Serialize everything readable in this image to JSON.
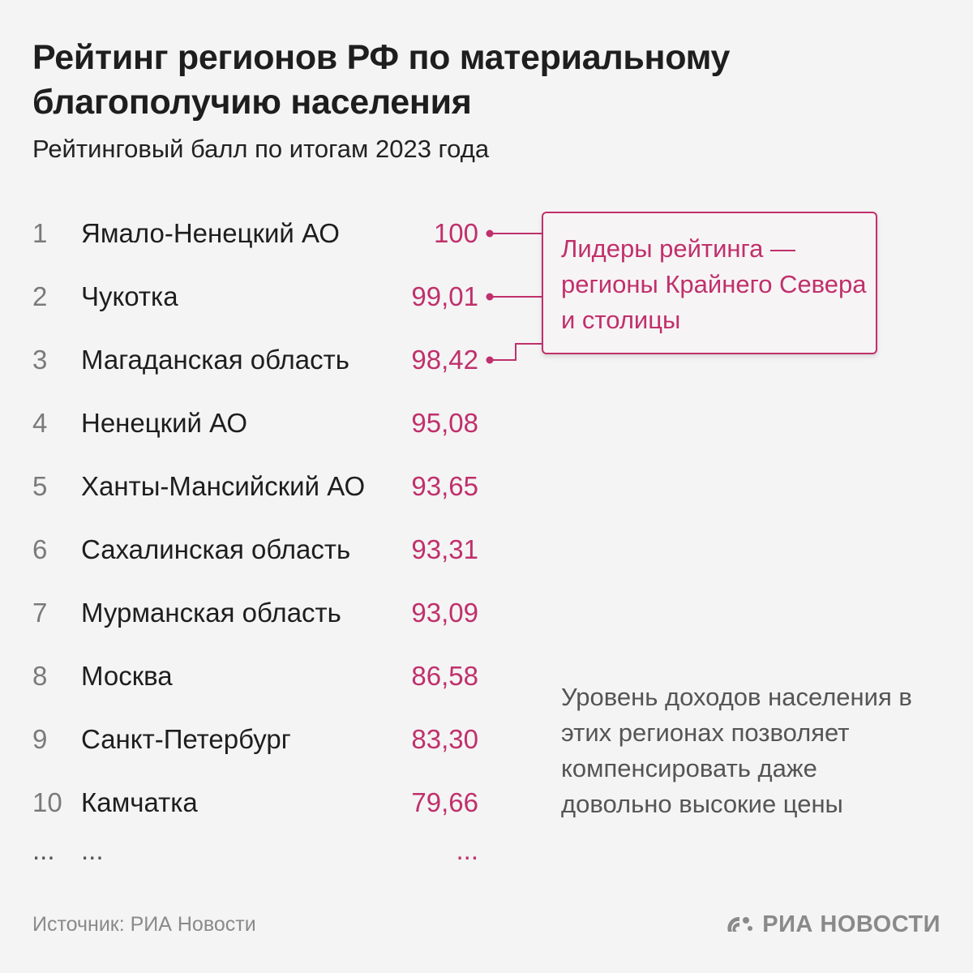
{
  "header": {
    "title": "Рейтинг регионов РФ по материальному благополучию населения",
    "subtitle": "Рейтинговый балл по итогам 2023 года"
  },
  "chart_data": {
    "type": "table",
    "title": "Рейтинг регионов РФ по материальному благополучию населения",
    "subtitle": "Рейтинговый балл по итогам 2023 года",
    "rows": [
      {
        "rank": "1",
        "region": "Ямало-Ненецкий АО",
        "value": "100"
      },
      {
        "rank": "2",
        "region": "Чукотка",
        "value": "99,01"
      },
      {
        "rank": "3",
        "region": "Магаданская область",
        "value": "98,42"
      },
      {
        "rank": "4",
        "region": "Ненецкий АО",
        "value": "95,08"
      },
      {
        "rank": "5",
        "region": "Ханты-Мансийский АО",
        "value": "93,65"
      },
      {
        "rank": "6",
        "region": "Сахалинская область",
        "value": "93,31"
      },
      {
        "rank": "7",
        "region": "Мурманская область",
        "value": "93,09"
      },
      {
        "rank": "8",
        "region": "Москва",
        "value": "86,58"
      },
      {
        "rank": "9",
        "region": "Санкт-Петербург",
        "value": "83,30"
      },
      {
        "rank": "10",
        "region": "Камчатка",
        "value": "79,66"
      }
    ],
    "more_row": {
      "rank": "...",
      "region": "...",
      "value": "..."
    },
    "annotations": {
      "callout": "Лидеры рейтинга — регионы Крайнего Севера и столицы",
      "note": "Уровень доходов населения в этих регионах позволяет компенсировать даже довольно высокие цены"
    }
  },
  "footer": {
    "source": "Источник: РИА Новости",
    "logo_text": "РИА НОВОСТИ"
  },
  "colors": {
    "accent": "#c0306c",
    "text": "#1e1e1e",
    "muted": "#8a8a8a",
    "background": "#f4f4f4"
  },
  "icons": {
    "logo": "ria-novosti-logo-icon"
  }
}
